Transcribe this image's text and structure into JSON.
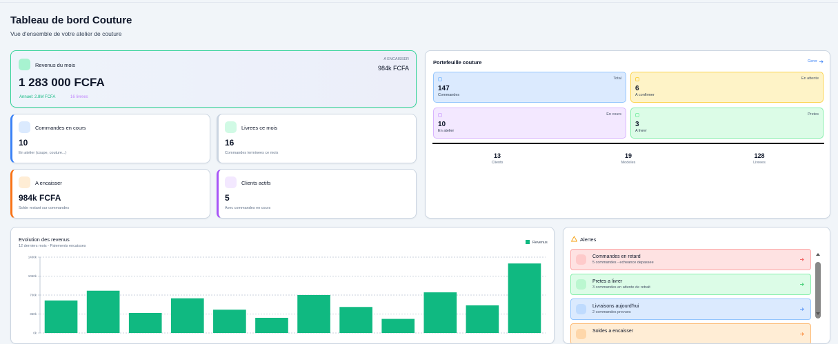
{
  "header": {
    "title": "Tableau de bord Couture",
    "subtitle": "Vue d'ensemble de votre atelier de couture"
  },
  "revenue_card": {
    "label": "Revenus du mois",
    "amount": "1 283 000 FCFA",
    "pending_label": "A ENCAISSER",
    "pending": "984k FCFA",
    "annual": "Annuel: 2.8M FCFA",
    "delivered": "16 livrees"
  },
  "stat_cards": [
    {
      "label": "Commandes en cours",
      "value": "10",
      "note": "En atelier (coupe, couture...)"
    },
    {
      "label": "Livrees ce mois",
      "value": "16",
      "note": "Commandes terminees ce mois"
    },
    {
      "label": "A encaisser",
      "value": "984k FCFA",
      "note": "Solde restant sur commandes"
    },
    {
      "label": "Clients actifs",
      "value": "5",
      "note": "Avec commandes en cours"
    }
  ],
  "portfolio": {
    "title": "Portefeuille couture",
    "action": "Gerer",
    "boxes": [
      {
        "tag": "Total",
        "value": "147",
        "label": "Commandes"
      },
      {
        "tag": "En attente",
        "value": "6",
        "label": "A confirmer"
      },
      {
        "tag": "En cours",
        "value": "10",
        "label": "En atelier"
      },
      {
        "tag": "Pretes",
        "value": "3",
        "label": "A livrer"
      }
    ],
    "stats": [
      {
        "value": "13",
        "label": "Clients"
      },
      {
        "value": "19",
        "label": "Modeles"
      },
      {
        "value": "128",
        "label": "Livrees"
      }
    ]
  },
  "revenue_chart": {
    "type": "bar",
    "title": "Evolution des revenus",
    "subtitle": "12 derniers mois - Paiements encaisses",
    "series": [
      {
        "name": "Revenus",
        "color": "#10b981",
        "values": [
          600000,
          780000,
          370000,
          640000,
          430000,
          280000,
          700000,
          480000,
          260000,
          750000,
          510000,
          1283000
        ]
      }
    ],
    "ylim": [
      0,
      1400000
    ],
    "yticks": [
      {
        "value": 0,
        "label": "0k"
      },
      {
        "value": 350000,
        "label": "350k"
      },
      {
        "value": 700000,
        "label": "700k"
      },
      {
        "value": 1050000,
        "label": "1050k"
      },
      {
        "value": 1400000,
        "label": "1400k"
      }
    ],
    "grid": true
  },
  "alerts": {
    "title": "Alertes",
    "items": [
      {
        "title": "Commandes en retard",
        "detail": "5 commandes - echeance depassee"
      },
      {
        "title": "Pretes a livrer",
        "detail": "3 commandes en attente de retrait"
      },
      {
        "title": "Livraisons aujourd'hui",
        "detail": "2 commandes prevues"
      },
      {
        "title": "Soldes a encaisser"
      }
    ]
  }
}
